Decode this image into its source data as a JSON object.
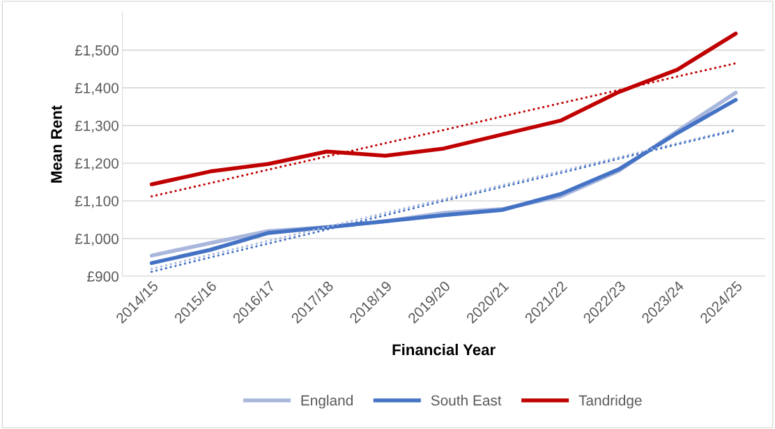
{
  "chart_data": {
    "type": "line",
    "xlabel": "Financial Year",
    "ylabel": "Mean Rent",
    "categories": [
      "2014/15",
      "2015/16",
      "2016/17",
      "2017/18",
      "2018/19",
      "2019/20",
      "2020/21",
      "2021/22",
      "2022/23",
      "2023/24",
      "2024/25"
    ],
    "series": [
      {
        "name": "England",
        "color": "#a9b7dd",
        "line_style": "solid",
        "values": [
          955,
          988,
          1020,
          1030,
          1046,
          1068,
          1078,
          1112,
          1180,
          1285,
          1387
        ]
      },
      {
        "name": "South East",
        "color": "#4472c4",
        "line_style": "solid",
        "values": [
          935,
          970,
          1015,
          1030,
          1046,
          1062,
          1076,
          1118,
          1184,
          1280,
          1368
        ]
      },
      {
        "name": "Tandridge",
        "color": "#c00000",
        "line_style": "solid",
        "values": [
          1144,
          1178,
          1198,
          1231,
          1220,
          1239,
          1276,
          1313,
          1389,
          1448,
          1544
        ]
      },
      {
        "color": "#a9b7dd",
        "line_style": "dotted",
        "values": [
          920,
          957,
          994,
          1031,
          1068,
          1105,
          1142,
          1179,
          1216,
          1253,
          1290
        ]
      },
      {
        "color": "#4472c4",
        "line_style": "dotted",
        "values": [
          912,
          950,
          987,
          1024,
          1062,
          1100,
          1137,
          1174,
          1212,
          1250,
          1287
        ]
      },
      {
        "color": "#c00000",
        "line_style": "dotted",
        "values": [
          1112,
          1147,
          1183,
          1218,
          1253,
          1288,
          1324,
          1359,
          1394,
          1430,
          1465
        ]
      }
    ],
    "ylim": [
      900,
      1600
    ],
    "yticks": [
      {
        "value": 900,
        "label": "£900"
      },
      {
        "value": 1000,
        "label": "£1,000"
      },
      {
        "value": 1100,
        "label": "£1,100"
      },
      {
        "value": 1200,
        "label": "£1,200"
      },
      {
        "value": 1300,
        "label": "£1,300"
      },
      {
        "value": 1400,
        "label": "£1,400"
      },
      {
        "value": 1500,
        "label": "£1,500"
      }
    ],
    "grid": "y",
    "legend": "bottom",
    "marker": "none"
  }
}
